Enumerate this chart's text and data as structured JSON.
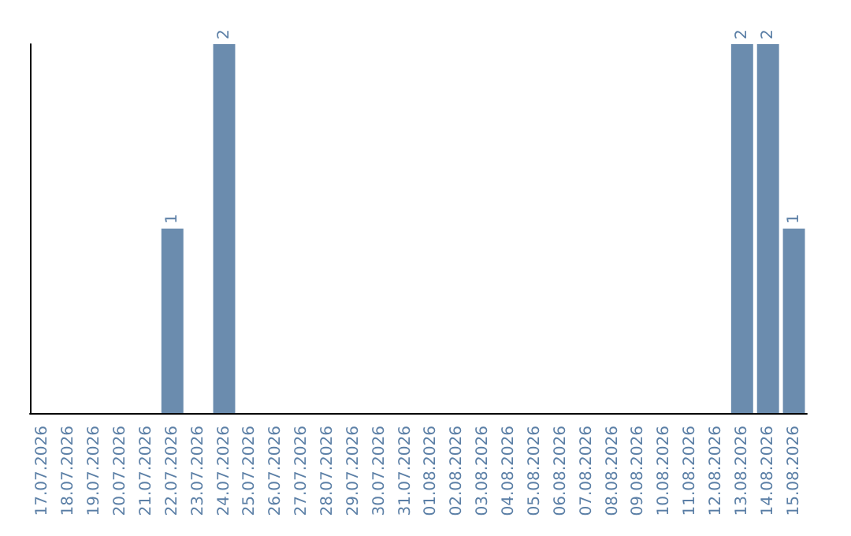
{
  "chart_data": {
    "type": "bar",
    "categories": [
      "17.07.2026",
      "18.07.2026",
      "19.07.2026",
      "20.07.2026",
      "21.07.2026",
      "22.07.2026",
      "23.07.2026",
      "24.07.2026",
      "25.07.2026",
      "26.07.2026",
      "27.07.2026",
      "28.07.2026",
      "29.07.2026",
      "30.07.2026",
      "31.07.2026",
      "01.08.2026",
      "02.08.2026",
      "03.08.2026",
      "04.08.2026",
      "05.08.2026",
      "06.08.2026",
      "07.08.2026",
      "08.08.2026",
      "09.08.2026",
      "10.08.2026",
      "11.08.2026",
      "12.08.2026",
      "13.08.2026",
      "14.08.2026",
      "15.08.2026"
    ],
    "values": [
      0,
      0,
      0,
      0,
      0,
      1,
      0,
      2,
      0,
      0,
      0,
      0,
      0,
      0,
      0,
      0,
      0,
      0,
      0,
      0,
      0,
      0,
      0,
      0,
      0,
      0,
      0,
      2,
      2,
      1
    ],
    "value_labels": [
      null,
      null,
      null,
      null,
      null,
      "1",
      null,
      "2",
      null,
      null,
      null,
      null,
      null,
      null,
      null,
      null,
      null,
      null,
      null,
      null,
      null,
      null,
      null,
      null,
      null,
      null,
      null,
      "2",
      "2",
      "1"
    ],
    "color": "#6b8cae",
    "ylim": [
      0,
      2
    ],
    "tick_labels": "x",
    "grid": false
  }
}
